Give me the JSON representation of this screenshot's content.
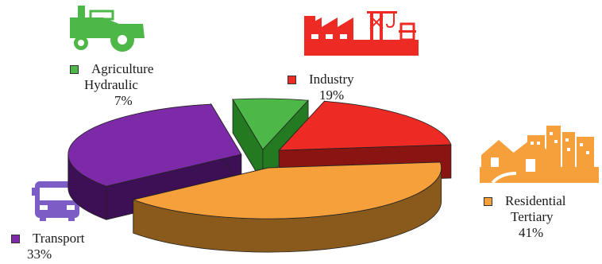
{
  "chart_data": {
    "type": "pie",
    "style": "3d-exploded",
    "slices": [
      {
        "label_lines": [
          "Agriculture",
          "Hydraulic"
        ],
        "value": 7,
        "value_text": "7%",
        "color": "#4db848",
        "side_color": "#237a20",
        "icon": "tractor-icon"
      },
      {
        "label_lines": [
          "Industry"
        ],
        "value": 19,
        "value_text": "19%",
        "color": "#ee2a24",
        "side_color": "#8a1412",
        "icon": "factory-icon"
      },
      {
        "label_lines": [
          "Residential",
          "Tertiary"
        ],
        "value": 41,
        "value_text": "41%",
        "color": "#f5a03a",
        "side_color": "#8a5a1c",
        "icon": "houses-icon"
      },
      {
        "label_lines": [
          "Transport"
        ],
        "value": 33,
        "value_text": "33%",
        "color": "#7d2aa8",
        "side_color": "#3d0f55",
        "icon": "bus-icon"
      }
    ]
  },
  "icons": {
    "tractor": {
      "name": "tractor-icon",
      "color": "#4db848"
    },
    "factory": {
      "name": "factory-icon",
      "color": "#ee2a24"
    },
    "houses": {
      "name": "houses-icon",
      "color": "#f5a03a"
    },
    "bus": {
      "name": "bus-icon",
      "color": "#7d5cc6"
    }
  }
}
